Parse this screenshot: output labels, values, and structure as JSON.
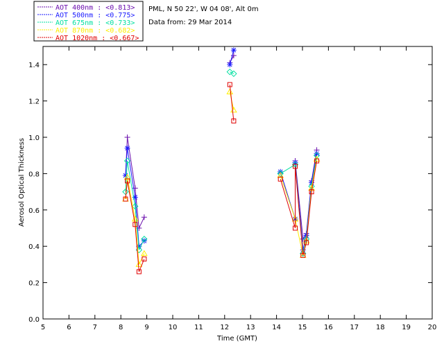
{
  "header": {
    "site": "PML, N 50 22', W 04 08', Alt 0m",
    "date": "Data from: 29 Mar 2014"
  },
  "chart_data": {
    "type": "line",
    "xlabel": "Time (GMT)",
    "ylabel": "Aerosol Optical Thickness",
    "xlim": [
      5,
      20
    ],
    "ylim": [
      0.0,
      1.5
    ],
    "xticks": [
      "5",
      "6",
      "7",
      "8",
      "9",
      "10",
      "11",
      "12",
      "13",
      "14",
      "15",
      "16",
      "17",
      "18",
      "19",
      "20"
    ],
    "yticks": [
      "0.0",
      "0.2",
      "0.4",
      "0.6",
      "0.8",
      "1.0",
      "1.2",
      "1.4"
    ],
    "grid": false,
    "legend_position": "top-left (outside plot)",
    "series": [
      {
        "name": "AOT 400nm : <0.813>",
        "color": "#6a0dad",
        "marker": "plus",
        "points": [
          [
            8.18,
            0.79
          ],
          [
            8.25,
            1.0
          ],
          [
            8.55,
            0.72
          ],
          [
            8.7,
            0.5
          ],
          [
            8.9,
            0.56
          ],
          [
            12.2,
            1.41
          ],
          [
            12.35,
            1.45
          ],
          [
            14.72,
            0.87
          ],
          [
            15.02,
            0.44
          ],
          [
            15.15,
            0.47
          ],
          [
            15.35,
            0.76
          ],
          [
            15.55,
            0.93
          ]
        ]
      },
      {
        "name": "AOT 500nm : <0.775>",
        "color": "#1a1aff",
        "marker": "asterisk",
        "points": [
          [
            8.18,
            0.79
          ],
          [
            8.25,
            0.94
          ],
          [
            8.55,
            0.67
          ],
          [
            8.7,
            0.4
          ],
          [
            8.9,
            0.43
          ],
          [
            12.2,
            1.4
          ],
          [
            12.35,
            1.48
          ],
          [
            14.15,
            0.81
          ],
          [
            14.72,
            0.55
          ],
          [
            14.72,
            0.86
          ],
          [
            15.02,
            0.38
          ],
          [
            15.15,
            0.46
          ],
          [
            15.35,
            0.75
          ],
          [
            15.55,
            0.91
          ]
        ]
      },
      {
        "name": "AOT 675nm : <0.733>",
        "color": "#00e0a0",
        "marker": "diamond",
        "points": [
          [
            8.18,
            0.7
          ],
          [
            8.25,
            0.87
          ],
          [
            8.55,
            0.62
          ],
          [
            8.7,
            0.38
          ],
          [
            8.9,
            0.44
          ],
          [
            12.2,
            1.36
          ],
          [
            12.35,
            1.35
          ],
          [
            14.15,
            0.8
          ],
          [
            14.72,
            0.85
          ],
          [
            15.02,
            0.36
          ],
          [
            15.15,
            0.44
          ],
          [
            15.35,
            0.73
          ],
          [
            15.55,
            0.9
          ]
        ]
      },
      {
        "name": "AOT 870nm : <0.682>",
        "color": "#ffee00",
        "marker": "triangle",
        "points": [
          [
            8.18,
            0.66
          ],
          [
            8.25,
            0.78
          ],
          [
            8.55,
            0.55
          ],
          [
            8.7,
            0.3
          ],
          [
            8.9,
            0.36
          ],
          [
            12.2,
            1.25
          ],
          [
            12.35,
            1.15
          ],
          [
            14.15,
            0.79
          ],
          [
            14.72,
            0.55
          ],
          [
            15.02,
            0.35
          ],
          [
            15.15,
            0.43
          ],
          [
            15.35,
            0.72
          ],
          [
            15.55,
            0.88
          ]
        ]
      },
      {
        "name": "AOT 1020nm : <0.667>",
        "color": "#e00000",
        "marker": "square",
        "points": [
          [
            8.18,
            0.66
          ],
          [
            8.25,
            0.76
          ],
          [
            8.55,
            0.52
          ],
          [
            8.7,
            0.26
          ],
          [
            8.9,
            0.33
          ],
          [
            12.2,
            1.29
          ],
          [
            12.35,
            1.09
          ],
          [
            14.15,
            0.77
          ],
          [
            14.72,
            0.5
          ],
          [
            14.72,
            0.84
          ],
          [
            15.02,
            0.35
          ],
          [
            15.15,
            0.42
          ],
          [
            15.35,
            0.7
          ],
          [
            15.55,
            0.87
          ]
        ]
      }
    ]
  }
}
